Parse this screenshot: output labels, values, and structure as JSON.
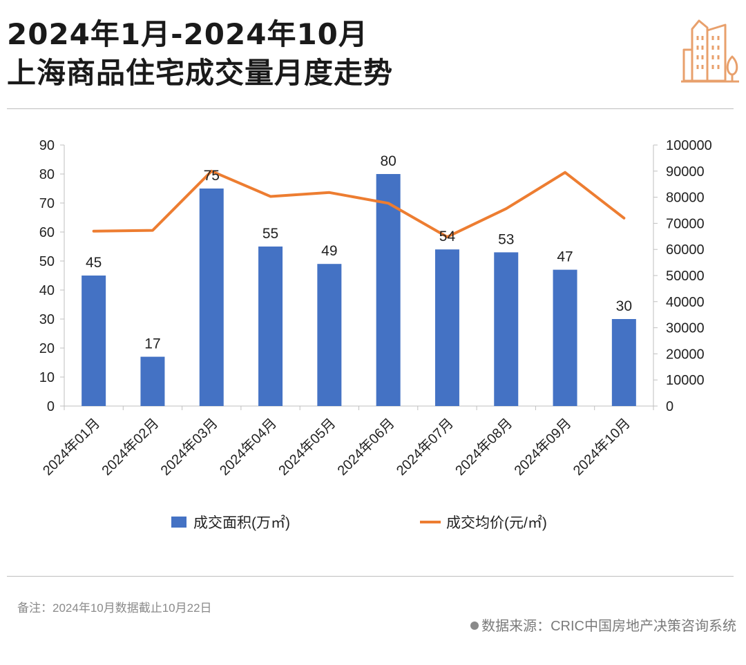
{
  "header": {
    "title_line1": "2024年1月-2024年10月",
    "title_line2": "上海商品住宅成交量月度走势"
  },
  "logo": {
    "icon": "city-buildings-icon",
    "color": "#E8A06C"
  },
  "chart_data": {
    "type": "bar",
    "categories": [
      "2024年01月",
      "2024年02月",
      "2024年03月",
      "2024年04月",
      "2024年05月",
      "2024年06月",
      "2024年07月",
      "2024年08月",
      "2024年09月",
      "2024年10月"
    ],
    "series": [
      {
        "name": "成交面积(万㎡)",
        "type": "bar",
        "axis": "left",
        "color": "#4472C4",
        "values": [
          45,
          17,
          75,
          55,
          49,
          80,
          54,
          53,
          47,
          30
        ],
        "labels": [
          "45",
          "17",
          "75",
          "55",
          "49",
          "80",
          "54",
          "53",
          "47",
          "30"
        ]
      },
      {
        "name": "成交均价(元/㎡)",
        "type": "line",
        "axis": "right",
        "color": "#ED7D31",
        "values": [
          67000,
          67300,
          90000,
          80300,
          81800,
          77700,
          64800,
          75600,
          89500,
          72000
        ]
      }
    ],
    "y_left": {
      "min": 0,
      "max": 90,
      "step": 10,
      "ticks": [
        "0",
        "10",
        "20",
        "30",
        "40",
        "50",
        "60",
        "70",
        "80",
        "90"
      ]
    },
    "y_right": {
      "min": 0,
      "max": 100000,
      "step": 10000,
      "ticks": [
        "0",
        "10000",
        "20000",
        "30000",
        "40000",
        "50000",
        "60000",
        "70000",
        "80000",
        "90000",
        "100000"
      ]
    },
    "grid": false,
    "legend_position": "bottom"
  },
  "footer": {
    "note": "备注：2024年10月数据截止10月22日",
    "source": "数据来源：CRIC中国房地产决策咨询系统"
  }
}
